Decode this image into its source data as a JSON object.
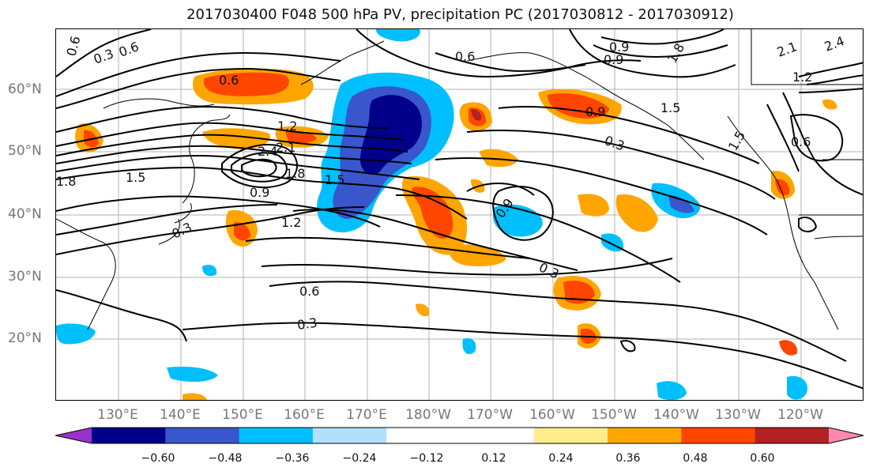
{
  "title": "2017030400 F048 500 hPa PV, precipitation PC (2017030812 - 2017030912)",
  "lat_labels": [
    {
      "text": "60°N"
    },
    {
      "text": "50°N"
    },
    {
      "text": "40°N"
    },
    {
      "text": "30°N"
    },
    {
      "text": "20°N"
    }
  ],
  "lon_labels": [
    {
      "text": "130°E"
    },
    {
      "text": "140°E"
    },
    {
      "text": "150°E"
    },
    {
      "text": "160°E"
    },
    {
      "text": "170°E"
    },
    {
      "text": "180°W"
    },
    {
      "text": "170°W"
    },
    {
      "text": "160°W"
    },
    {
      "text": "150°W"
    },
    {
      "text": "140°W"
    },
    {
      "text": "130°W"
    },
    {
      "text": "120°W"
    }
  ],
  "contour_labels": [
    "0.6",
    "0.3",
    "0.6",
    "0.9",
    "0.6",
    "0.9",
    "1.5",
    "1.8",
    "1.5",
    "1.2",
    "0.6",
    "1.2",
    "2.4",
    "2.1",
    "1.8",
    "1.5",
    "0.9",
    "0.3",
    "1.8",
    "0.9",
    "0.3",
    "0.6",
    "0.3",
    "0.9",
    "0.6",
    "1.5",
    "2.1",
    "2.4",
    "1.2"
  ],
  "colorbar": {
    "colors": [
      "#9932cc",
      "#00008b",
      "#3a56cc",
      "#00bfff",
      "#b0e0fa",
      "#ffffff",
      "#ffffff",
      "#ffec8b",
      "#ffa500",
      "#ff4500",
      "#b22222",
      "#ff88b3"
    ],
    "ticks": [
      "−0.60",
      "−0.48",
      "−0.36",
      "−0.24",
      "−0.12",
      "0.12",
      "0.24",
      "0.36",
      "0.48",
      "0.60"
    ]
  }
}
